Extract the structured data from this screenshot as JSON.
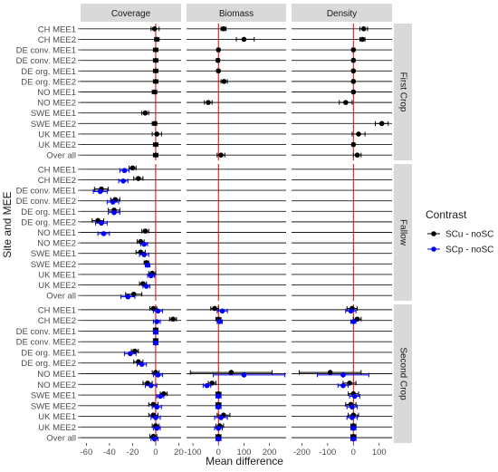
{
  "chart_data": {
    "type": "scatter",
    "title": "",
    "xlabel": "Mean difference",
    "ylabel": "Site and MEE",
    "legend": {
      "title": "Contrast",
      "placement": "right",
      "entries": [
        {
          "name": "SCu - noSC",
          "color": "#000000"
        },
        {
          "name": "SCp - noSC",
          "color": "#0000ff"
        }
      ]
    },
    "columns": [
      {
        "name": "Coverage",
        "xlim": [
          -65,
          22
        ],
        "ticks": [
          -60,
          -40,
          -20,
          0,
          20
        ],
        "ref_line": 0
      },
      {
        "name": "Biomass",
        "xlim": [
          -125,
          265
        ],
        "ticks": [
          -100,
          0,
          100,
          200
        ],
        "ref_line": 0
      },
      {
        "name": "Density",
        "xlim": [
          -240,
          150
        ],
        "ticks": [
          -200,
          -100,
          0,
          100
        ],
        "ref_line": 0
      }
    ],
    "rows": [
      {
        "name": "First Crop",
        "categories": [
          "CH MEE1",
          "CH MEE2",
          "DE conv. MEE1",
          "DE conv. MEE2",
          "DE org. MEE1",
          "DE org. MEE2",
          "NO MEE1",
          "NO MEE2",
          "SWE MEE1",
          "SWE MEE2",
          "UK MEE1",
          "UK MEE2",
          "Over all"
        ]
      },
      {
        "name": "Fallow",
        "categories": [
          "CH MEE1",
          "CH MEE2",
          "DE conv. MEE1",
          "DE conv. MEE2",
          "DE org. MEE1",
          "DE org. MEE2",
          "NO MEE1",
          "NO MEE2",
          "SWE MEE1",
          "SWE MEE2",
          "UK MEE1",
          "UK MEE2",
          "Over all"
        ]
      },
      {
        "name": "Second Crop",
        "categories": [
          "CH MEE1",
          "CH MEE2",
          "DE conv. MEE1",
          "DE conv. MEE2",
          "DE org. MEE1",
          "DE org. MEE2",
          "NO MEE1",
          "NO MEE2",
          "SWE MEE1",
          "SWE MEE2",
          "UK MEE1",
          "UK MEE2",
          "Over all"
        ]
      }
    ],
    "points": [
      {
        "row": "First Crop",
        "col": "Coverage",
        "series": "SCu - noSC",
        "values": [
          [
            -1,
            -4,
            3
          ],
          [
            1,
            -1,
            3
          ],
          [
            0,
            -2,
            2
          ],
          [
            0,
            -2,
            2
          ],
          [
            0,
            -2,
            2
          ],
          [
            0,
            -2,
            2
          ],
          [
            -1,
            -3,
            1
          ],
          [
            null,
            null,
            null
          ],
          [
            -9,
            -12,
            -6
          ],
          [
            -1,
            -3,
            1
          ],
          [
            1,
            -3,
            5
          ],
          [
            0,
            -2,
            2
          ],
          [
            0,
            -2,
            2
          ]
        ]
      },
      {
        "row": "First Crop",
        "col": "Biomass",
        "series": "SCu - noSC",
        "values": [
          [
            20,
            10,
            30
          ],
          [
            100,
            70,
            140
          ],
          [
            0,
            -5,
            5
          ],
          [
            -2,
            -8,
            4
          ],
          [
            0,
            -5,
            5
          ],
          [
            22,
            10,
            35
          ],
          [
            null,
            null,
            null
          ],
          [
            -40,
            -55,
            -25
          ],
          [
            null,
            null,
            null
          ],
          [
            null,
            null,
            null
          ],
          [
            null,
            null,
            null
          ],
          [
            null,
            null,
            null
          ],
          [
            10,
            -5,
            25
          ]
        ]
      },
      {
        "row": "First Crop",
        "col": "Density",
        "series": "SCu - noSC",
        "values": [
          [
            40,
            25,
            55
          ],
          [
            35,
            25,
            45
          ],
          [
            0,
            -5,
            5
          ],
          [
            0,
            -5,
            5
          ],
          [
            0,
            -5,
            5
          ],
          [
            0,
            -5,
            5
          ],
          [
            0,
            -5,
            5
          ],
          [
            -30,
            -55,
            -5
          ],
          [
            null,
            null,
            null
          ],
          [
            110,
            85,
            135
          ],
          [
            20,
            -5,
            45
          ],
          [
            0,
            -5,
            5
          ],
          [
            15,
            0,
            30
          ]
        ]
      },
      {
        "row": "Fallow",
        "col": "Coverage",
        "series": "SCu - noSC",
        "values": [
          [
            -20,
            -23,
            -17
          ],
          [
            -15,
            -19,
            -11
          ],
          [
            -47,
            -53,
            -41
          ],
          [
            -35,
            -39,
            -31
          ],
          [
            -36,
            -41,
            -31
          ],
          [
            -50,
            -55,
            -45
          ],
          [
            -9,
            -12,
            -6
          ],
          [
            -13,
            -16,
            -10
          ],
          [
            -13,
            -17,
            -9
          ],
          [
            -8,
            -10,
            -6
          ],
          [
            -3,
            -6,
            0
          ],
          [
            -11,
            -14,
            -8
          ],
          [
            -19,
            -26,
            -12
          ]
        ]
      },
      {
        "row": "Fallow",
        "col": "Coverage",
        "series": "SCp - noSC",
        "values": [
          [
            -27,
            -31,
            -23
          ],
          [
            -28,
            -32,
            -24
          ],
          [
            -48,
            -54,
            -42
          ],
          [
            -37,
            -42,
            -32
          ],
          [
            -36,
            -41,
            -31
          ],
          [
            -47,
            -52,
            -42
          ],
          [
            -45,
            -50,
            -40
          ],
          [
            -10,
            -13,
            -7
          ],
          [
            -10,
            -14,
            -6
          ],
          [
            -7,
            -9,
            -5
          ],
          [
            -4,
            -7,
            -1
          ],
          [
            -8,
            -11,
            -5
          ],
          [
            -24,
            -30,
            -18
          ]
        ]
      },
      {
        "row": "Second Crop",
        "col": "Coverage",
        "series": "SCu - noSC",
        "values": [
          [
            -2,
            -5,
            1
          ],
          [
            15,
            12,
            18
          ],
          [
            0,
            -2,
            2
          ],
          [
            0,
            -2,
            2
          ],
          [
            -18,
            -21,
            -15
          ],
          [
            -15,
            -19,
            -11
          ],
          [
            0,
            -3,
            3
          ],
          [
            -7,
            -11,
            -3
          ],
          [
            7,
            4,
            10
          ],
          [
            -2,
            -6,
            2
          ],
          [
            -2,
            -6,
            2
          ],
          [
            0,
            -3,
            3
          ],
          [
            -2,
            -5,
            1
          ]
        ]
      },
      {
        "row": "Second Crop",
        "col": "Coverage",
        "series": "SCp - noSC",
        "values": [
          [
            2,
            -2,
            6
          ],
          [
            1,
            -2,
            4
          ],
          [
            0,
            -2,
            2
          ],
          [
            0,
            -2,
            2
          ],
          [
            -22,
            -27,
            -17
          ],
          [
            -12,
            -16,
            -8
          ],
          [
            2,
            -2,
            6
          ],
          [
            -4,
            -9,
            1
          ],
          [
            4,
            1,
            7
          ],
          [
            1,
            -3,
            5
          ],
          [
            0,
            -4,
            4
          ],
          [
            1,
            -2,
            4
          ],
          [
            -1,
            -4,
            2
          ]
        ]
      },
      {
        "row": "Second Crop",
        "col": "Biomass",
        "series": "SCu - noSC",
        "values": [
          [
            -15,
            -30,
            0
          ],
          [
            0,
            -10,
            10
          ],
          [
            null,
            null,
            null
          ],
          [
            null,
            null,
            null
          ],
          [
            null,
            null,
            null
          ],
          [
            null,
            null,
            null
          ],
          [
            50,
            -110,
            210
          ],
          [
            -25,
            -40,
            -10
          ],
          [
            0,
            -10,
            10
          ],
          [
            0,
            -10,
            10
          ],
          [
            20,
            -5,
            45
          ],
          [
            5,
            -10,
            20
          ],
          [
            0,
            -10,
            10
          ]
        ]
      },
      {
        "row": "Second Crop",
        "col": "Biomass",
        "series": "SCp - noSC",
        "values": [
          [
            15,
            -5,
            35
          ],
          [
            5,
            -5,
            15
          ],
          [
            null,
            null,
            null
          ],
          [
            null,
            null,
            null
          ],
          [
            null,
            null,
            null
          ],
          [
            null,
            null,
            null
          ],
          [
            100,
            -20,
            260
          ],
          [
            -45,
            -60,
            -30
          ],
          [
            0,
            -10,
            10
          ],
          [
            0,
            -10,
            10
          ],
          [
            10,
            -15,
            35
          ],
          [
            0,
            -15,
            15
          ],
          [
            0,
            -10,
            10
          ]
        ]
      },
      {
        "row": "Second Crop",
        "col": "Density",
        "series": "SCu - noSC",
        "values": [
          [
            -5,
            -25,
            15
          ],
          [
            15,
            0,
            30
          ],
          [
            null,
            null,
            null
          ],
          [
            null,
            null,
            null
          ],
          [
            null,
            null,
            null
          ],
          [
            null,
            null,
            null
          ],
          [
            -90,
            -210,
            30
          ],
          [
            -15,
            -40,
            10
          ],
          [
            0,
            -20,
            20
          ],
          [
            -10,
            -30,
            10
          ],
          [
            0,
            -20,
            20
          ],
          [
            0,
            -10,
            10
          ],
          [
            0,
            -10,
            10
          ]
        ]
      },
      {
        "row": "Second Crop",
        "col": "Density",
        "series": "SCp - noSC",
        "values": [
          [
            -10,
            -30,
            10
          ],
          [
            0,
            -10,
            10
          ],
          [
            null,
            null,
            null
          ],
          [
            null,
            null,
            null
          ],
          [
            null,
            null,
            null
          ],
          [
            null,
            null,
            null
          ],
          [
            -40,
            -140,
            60
          ],
          [
            -40,
            -60,
            -20
          ],
          [
            5,
            -15,
            25
          ],
          [
            -5,
            -25,
            15
          ],
          [
            -5,
            -25,
            15
          ],
          [
            0,
            -10,
            10
          ],
          [
            0,
            -10,
            10
          ]
        ]
      }
    ]
  }
}
